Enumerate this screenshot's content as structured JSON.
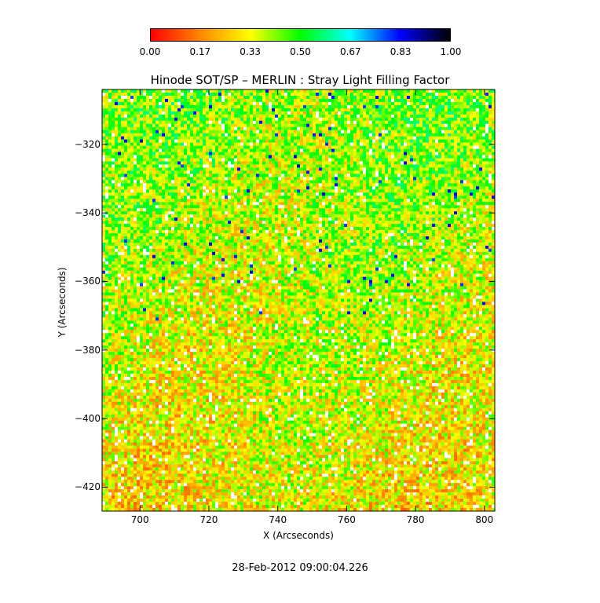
{
  "chart_data": {
    "type": "heatmap",
    "title": "Hinode SOT/SP – MERLIN : Stray Light Filling Factor",
    "xlabel": "X (Arcseconds)",
    "ylabel": "Y (Arcseconds)",
    "xlim": [
      689,
      803
    ],
    "ylim": [
      -427,
      -304
    ],
    "x_ticks": [
      "700",
      "720",
      "740",
      "760",
      "780",
      "800"
    ],
    "y_ticks": [
      "−320",
      "−340",
      "−360",
      "−380",
      "−400",
      "−420"
    ],
    "colorbar": {
      "range": [
        0.0,
        1.0
      ],
      "ticks": [
        "0.00",
        "0.17",
        "0.33",
        "0.50",
        "0.67",
        "0.83",
        "1.00"
      ],
      "colormap": [
        "#ff0000",
        "#ff8800",
        "#ffff00",
        "#00ff00",
        "#00ffff",
        "#0000ff",
        "#000000"
      ]
    },
    "field_description": "mostly 0.2–0.5 (orange/yellow/green), with white pixels (missing/zero) and sparse blue patches (~0.8) in upper-left region",
    "colors": {
      "low": "#ff0000",
      "mid": "#00ff00",
      "high": "#000000",
      "missing": "#ffffff"
    }
  },
  "timestamp": "28-Feb-2012 09:00:04.226"
}
